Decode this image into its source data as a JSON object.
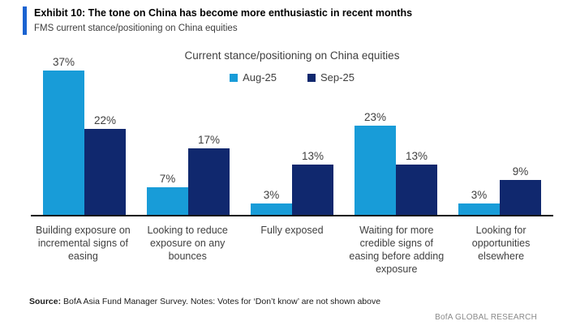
{
  "header": {
    "exhibit_title": "Exhibit 10: The tone on China has become more enthusiastic in recent months",
    "subtitle": "FMS current stance/positioning on China equities"
  },
  "chart_data": {
    "type": "bar",
    "title": "Current stance/positioning on China equities",
    "categories": [
      "Building exposure on incremental signs of easing",
      "Looking to reduce exposure on any bounces",
      "Fully exposed",
      "Waiting for more credible signs of easing before adding exposure",
      "Looking for opportunities elsewhere"
    ],
    "series": [
      {
        "name": "Aug-25",
        "color": "#189CD8",
        "values": [
          37,
          7,
          3,
          23,
          3
        ]
      },
      {
        "name": "Sep-25",
        "color": "#10286E",
        "values": [
          22,
          17,
          13,
          13,
          9
        ]
      }
    ],
    "value_suffix": "%",
    "ylim": [
      0,
      40
    ],
    "grid": false,
    "legend_position": "top-center",
    "data_labels": true,
    "axis_line_color": "#111111"
  },
  "footer": {
    "source_label": "Source:",
    "source_text": " BofA Asia Fund Manager Survey. Notes: Votes for ‘Don’t know’ are not shown above",
    "brand": "BofA GLOBAL RESEARCH"
  },
  "colors": {
    "accent_bar": "#1B63D1",
    "aug_bar": "#189CD8",
    "sep_bar": "#10286E",
    "text": "#3f3f3f",
    "brand_text": "#8a8a8a"
  }
}
